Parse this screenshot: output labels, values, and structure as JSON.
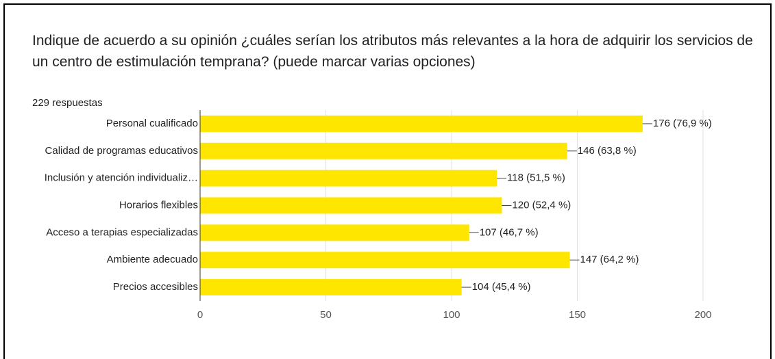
{
  "chart_data": {
    "type": "bar",
    "orientation": "horizontal",
    "title": "Indique de acuerdo a su opinión ¿cuáles serían los atributos más relevantes a la hora de adquirir los servicios de un centro de estimulación temprana? (puede marcar varias opciones)",
    "subtitle": "229 respuestas",
    "categories": [
      "Personal cualificado",
      "Calidad de programas educativos",
      "Inclusión y atención individualiz…",
      "Horarios flexibles",
      "Acceso a terapias especializadas",
      "Ambiente adecuado",
      "Precios accesibles"
    ],
    "values": [
      176,
      146,
      118,
      120,
      107,
      147,
      104
    ],
    "value_labels": [
      "176 (76,9 %)",
      "146 (63,8 %)",
      "118 (51,5 %)",
      "120 (52,4 %)",
      "107 (46,7 %)",
      "147 (64,2 %)",
      "104 (45,4 %)"
    ],
    "color": "#ffe600",
    "xlim": [
      0,
      200
    ],
    "xticks": [
      0,
      50,
      100,
      150,
      200
    ],
    "grid": true
  }
}
